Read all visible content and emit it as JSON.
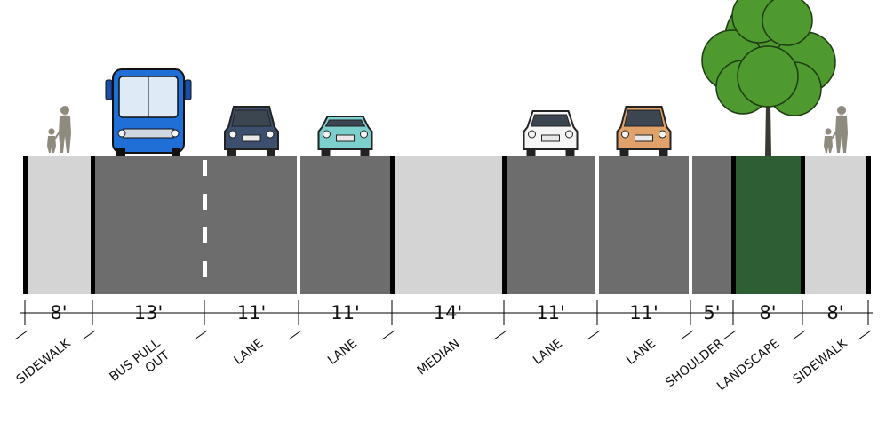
{
  "segments": [
    {
      "width": "8'",
      "label": [
        "SIDEWALK"
      ],
      "surface": "sidewalk",
      "feature": "pedestrians"
    },
    {
      "width": "13'",
      "label": [
        "BUS PULL",
        "OUT"
      ],
      "surface": "road",
      "feature": "bus"
    },
    {
      "width": "11'",
      "label": [
        "LANE"
      ],
      "surface": "road",
      "feature": "car-dark-blue"
    },
    {
      "width": "11'",
      "label": [
        "LANE"
      ],
      "surface": "road",
      "feature": "car-teal"
    },
    {
      "width": "14'",
      "label": [
        "MEDIAN"
      ],
      "surface": "median",
      "feature": "none"
    },
    {
      "width": "11'",
      "label": [
        "LANE"
      ],
      "surface": "road",
      "feature": "car-white"
    },
    {
      "width": "11'",
      "label": [
        "LANE"
      ],
      "surface": "road",
      "feature": "car-orange"
    },
    {
      "width": "5'",
      "label": [
        "SHOULDER"
      ],
      "surface": "road",
      "feature": "none"
    },
    {
      "width": "8'",
      "label": [
        "LANDSCAPE"
      ],
      "surface": "landscape",
      "feature": "tree"
    },
    {
      "width": "8'",
      "label": [
        "SIDEWALK"
      ],
      "surface": "sidewalk",
      "feature": "pedestrians"
    }
  ],
  "colors": {
    "road": "#6d6d6d",
    "sidewalk": "#d4d4d4",
    "median": "#d4d4d4",
    "landscape": "#2e5f34",
    "curb": "#000000",
    "marking": "#ffffff",
    "bus": "#1f6fd6",
    "tree": "#4f9a2e"
  }
}
